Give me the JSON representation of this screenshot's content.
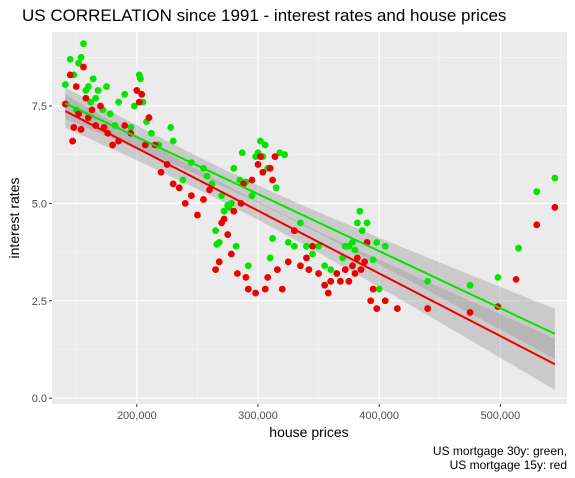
{
  "chart_data": {
    "type": "scatter",
    "title": "US CORRELATION since 1991 - interest rates and house prices",
    "xlabel": "house prices",
    "ylabel": "interest rates",
    "caption": [
      "US mortgage 30y: green,",
      "US mortgage 15y: red"
    ],
    "xlim": [
      130000,
      555000
    ],
    "ylim": [
      -0.15,
      9.4
    ],
    "x_ticks": [
      200000,
      300000,
      400000,
      500000
    ],
    "x_tick_labels": [
      "200,000",
      "300,000",
      "400,000",
      "500,000"
    ],
    "y_ticks": [
      0.0,
      2.5,
      5.0,
      7.5
    ],
    "y_tick_labels": [
      "0.0",
      "2.5",
      "5.0",
      "7.5"
    ],
    "grid": true,
    "series": [
      {
        "color": "#00e600",
        "points": [
          [
            141000,
            8.05
          ],
          [
            145000,
            8.7
          ],
          [
            148000,
            8.3
          ],
          [
            150000,
            7.4
          ],
          [
            152000,
            8.6
          ],
          [
            154000,
            8.75
          ],
          [
            156000,
            9.1
          ],
          [
            158000,
            7.9
          ],
          [
            160000,
            8.0
          ],
          [
            162000,
            7.6
          ],
          [
            164000,
            8.2
          ],
          [
            166000,
            7.7
          ],
          [
            168000,
            7.9
          ],
          [
            172000,
            7.4
          ],
          [
            175000,
            8.0
          ],
          [
            178000,
            7.3
          ],
          [
            182000,
            7.0
          ],
          [
            185000,
            7.6
          ],
          [
            190000,
            7.8
          ],
          [
            195000,
            6.95
          ],
          [
            198000,
            7.5
          ],
          [
            202000,
            8.3
          ],
          [
            203000,
            8.2
          ],
          [
            205000,
            7.6
          ],
          [
            208000,
            7.1
          ],
          [
            212000,
            6.8
          ],
          [
            218000,
            6.5
          ],
          [
            228000,
            6.95
          ],
          [
            230000,
            6.6
          ],
          [
            238000,
            5.6
          ],
          [
            245000,
            6.05
          ],
          [
            255000,
            5.9
          ],
          [
            258000,
            5.7
          ],
          [
            262000,
            5.5
          ],
          [
            265000,
            4.3
          ],
          [
            266000,
            3.95
          ],
          [
            268000,
            4.0
          ],
          [
            270000,
            5.2
          ],
          [
            272000,
            4.8
          ],
          [
            275000,
            4.95
          ],
          [
            276000,
            4.9
          ],
          [
            278000,
            5.0
          ],
          [
            280000,
            5.9
          ],
          [
            282000,
            3.9
          ],
          [
            285000,
            5.6
          ],
          [
            287000,
            6.3
          ],
          [
            290000,
            5.55
          ],
          [
            292000,
            3.4
          ],
          [
            295000,
            5.2
          ],
          [
            298000,
            6.2
          ],
          [
            300000,
            6.3
          ],
          [
            302000,
            6.6
          ],
          [
            304000,
            6.2
          ],
          [
            306000,
            6.5
          ],
          [
            308000,
            5.9
          ],
          [
            310000,
            3.6
          ],
          [
            312000,
            4.1
          ],
          [
            315000,
            5.4
          ],
          [
            318000,
            6.3
          ],
          [
            322000,
            6.25
          ],
          [
            325000,
            4.0
          ],
          [
            330000,
            3.9
          ],
          [
            335000,
            4.5
          ],
          [
            340000,
            3.9
          ],
          [
            345000,
            3.7
          ],
          [
            350000,
            3.9
          ],
          [
            355000,
            3.4
          ],
          [
            360000,
            3.3
          ],
          [
            365000,
            3.2
          ],
          [
            370000,
            3.6
          ],
          [
            372000,
            3.9
          ],
          [
            375000,
            3.9
          ],
          [
            378000,
            4.0
          ],
          [
            380000,
            3.8
          ],
          [
            382000,
            4.5
          ],
          [
            384000,
            4.8
          ],
          [
            386000,
            4.3
          ],
          [
            390000,
            4.5
          ],
          [
            395000,
            3.55
          ],
          [
            398000,
            4.0
          ],
          [
            400000,
            2.8
          ],
          [
            405000,
            3.9
          ],
          [
            440000,
            3.0
          ],
          [
            475000,
            2.9
          ],
          [
            498000,
            3.1
          ],
          [
            515000,
            3.85
          ],
          [
            530000,
            5.3
          ],
          [
            545000,
            5.65
          ]
        ],
        "fit_line": [
          [
            141000,
            7.57
          ],
          [
            545000,
            1.65
          ]
        ]
      },
      {
        "color": "#ee0000",
        "points": [
          [
            141000,
            7.55
          ],
          [
            145000,
            8.3
          ],
          [
            147000,
            6.6
          ],
          [
            148000,
            6.95
          ],
          [
            150000,
            8.0
          ],
          [
            152000,
            7.3
          ],
          [
            154000,
            6.9
          ],
          [
            156000,
            8.5
          ],
          [
            158000,
            7.7
          ],
          [
            160000,
            7.2
          ],
          [
            163000,
            7.4
          ],
          [
            166000,
            7.0
          ],
          [
            170000,
            7.5
          ],
          [
            173000,
            6.95
          ],
          [
            176000,
            6.8
          ],
          [
            180000,
            6.5
          ],
          [
            185000,
            6.6
          ],
          [
            190000,
            7.0
          ],
          [
            195000,
            6.8
          ],
          [
            200000,
            7.9
          ],
          [
            202000,
            7.6
          ],
          [
            204000,
            7.8
          ],
          [
            207000,
            6.5
          ],
          [
            210000,
            7.2
          ],
          [
            215000,
            6.5
          ],
          [
            220000,
            5.8
          ],
          [
            225000,
            6.0
          ],
          [
            230000,
            5.5
          ],
          [
            235000,
            5.4
          ],
          [
            240000,
            5.0
          ],
          [
            245000,
            5.2
          ],
          [
            250000,
            4.7
          ],
          [
            255000,
            5.1
          ],
          [
            260000,
            5.35
          ],
          [
            265000,
            3.3
          ],
          [
            268000,
            3.5
          ],
          [
            270000,
            4.5
          ],
          [
            272000,
            4.6
          ],
          [
            275000,
            4.2
          ],
          [
            278000,
            3.7
          ],
          [
            280000,
            4.8
          ],
          [
            283000,
            3.2
          ],
          [
            286000,
            5.0
          ],
          [
            288000,
            5.5
          ],
          [
            290000,
            3.1
          ],
          [
            292000,
            2.8
          ],
          [
            295000,
            5.6
          ],
          [
            298000,
            2.7
          ],
          [
            300000,
            6.0
          ],
          [
            302000,
            6.2
          ],
          [
            304000,
            5.8
          ],
          [
            306000,
            2.8
          ],
          [
            308000,
            3.1
          ],
          [
            310000,
            5.9
          ],
          [
            312000,
            5.6
          ],
          [
            314000,
            6.2
          ],
          [
            316000,
            3.3
          ],
          [
            320000,
            2.8
          ],
          [
            325000,
            3.5
          ],
          [
            330000,
            4.3
          ],
          [
            335000,
            3.4
          ],
          [
            340000,
            3.6
          ],
          [
            342000,
            3.3
          ],
          [
            345000,
            3.9
          ],
          [
            350000,
            3.2
          ],
          [
            355000,
            2.9
          ],
          [
            358000,
            2.7
          ],
          [
            360000,
            3.0
          ],
          [
            365000,
            3.2
          ],
          [
            368000,
            3.0
          ],
          [
            372000,
            3.3
          ],
          [
            375000,
            3.0
          ],
          [
            378000,
            3.4
          ],
          [
            380000,
            3.2
          ],
          [
            382000,
            3.6
          ],
          [
            385000,
            3.3
          ],
          [
            388000,
            3.5
          ],
          [
            390000,
            4.0
          ],
          [
            393000,
            2.5
          ],
          [
            395000,
            2.8
          ],
          [
            398000,
            2.3
          ],
          [
            405000,
            2.5
          ],
          [
            415000,
            2.3
          ],
          [
            440000,
            2.3
          ],
          [
            475000,
            2.2
          ],
          [
            498000,
            2.35
          ],
          [
            513000,
            3.05
          ],
          [
            530000,
            4.45
          ],
          [
            545000,
            4.9
          ]
        ],
        "fit_line": [
          [
            141000,
            7.37
          ],
          [
            545000,
            0.87
          ]
        ]
      }
    ]
  }
}
